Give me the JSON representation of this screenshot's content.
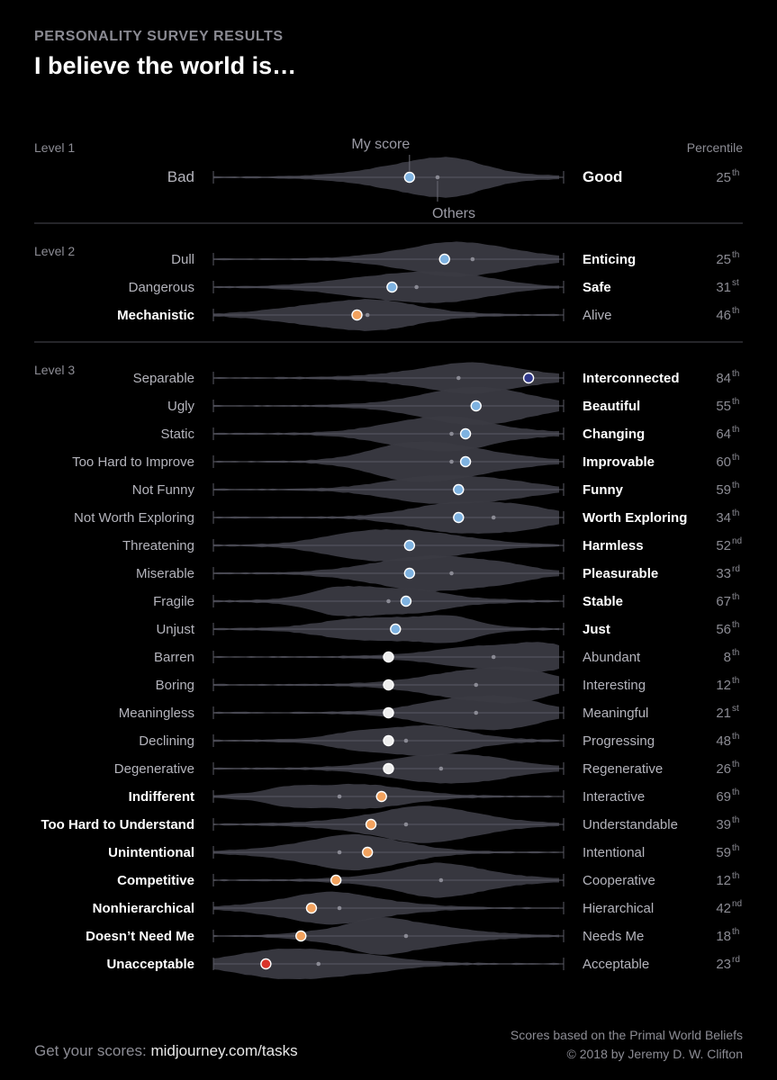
{
  "header": {
    "eyebrow": "PERSONALITY SURVEY RESULTS",
    "title": "I believe the world is…"
  },
  "chart_data": {
    "type": "violin",
    "scale": [
      0,
      100
    ],
    "column_header": "Percentile",
    "annotations": {
      "my_score": "My score",
      "others": "Others"
    },
    "levels": [
      {
        "label": "Level 1",
        "rows": [
          {
            "left": "Bad",
            "right": "Good",
            "bold": "right",
            "my_score": 56,
            "others_median": 64,
            "percentile": "25",
            "suffix": "th",
            "color": "#7eb2e0"
          }
        ]
      },
      {
        "label": "Level 2",
        "rows": [
          {
            "left": "Dull",
            "right": "Enticing",
            "bold": "right",
            "my_score": 66,
            "others_median": 74,
            "percentile": "25",
            "suffix": "th",
            "color": "#7eb2e0"
          },
          {
            "left": "Dangerous",
            "right": "Safe",
            "bold": "right",
            "my_score": 51,
            "others_median": 58,
            "percentile": "31",
            "suffix": "st",
            "color": "#7eb2e0"
          },
          {
            "left": "Mechanistic",
            "right": "Alive",
            "bold": "left",
            "my_score": 41,
            "others_median": 44,
            "percentile": "46",
            "suffix": "th",
            "color": "#f2a25e"
          }
        ]
      },
      {
        "label": "Level 3",
        "rows": [
          {
            "left": "Separable",
            "right": "Interconnected",
            "bold": "right",
            "my_score": 90,
            "others_median": 70,
            "percentile": "84",
            "suffix": "th",
            "color": "#323a8c"
          },
          {
            "left": "Ugly",
            "right": "Beautiful",
            "bold": "right",
            "my_score": 75,
            "others_median": 75,
            "percentile": "55",
            "suffix": "th",
            "color": "#7eb2e0"
          },
          {
            "left": "Static",
            "right": "Changing",
            "bold": "right",
            "my_score": 72,
            "others_median": 68,
            "percentile": "64",
            "suffix": "th",
            "color": "#7eb2e0"
          },
          {
            "left": "Too Hard to Improve",
            "right": "Improvable",
            "bold": "right",
            "my_score": 72,
            "others_median": 68,
            "percentile": "60",
            "suffix": "th",
            "color": "#7eb2e0"
          },
          {
            "left": "Not Funny",
            "right": "Funny",
            "bold": "right",
            "my_score": 70,
            "others_median": 70,
            "percentile": "59",
            "suffix": "th",
            "color": "#7eb2e0"
          },
          {
            "left": "Not Worth Exploring",
            "right": "Worth Exploring",
            "bold": "right",
            "my_score": 70,
            "others_median": 80,
            "percentile": "34",
            "suffix": "th",
            "color": "#7eb2e0"
          },
          {
            "left": "Threatening",
            "right": "Harmless",
            "bold": "right",
            "my_score": 56,
            "others_median": 56,
            "percentile": "52",
            "suffix": "nd",
            "color": "#7eb2e0"
          },
          {
            "left": "Miserable",
            "right": "Pleasurable",
            "bold": "right",
            "my_score": 56,
            "others_median": 68,
            "percentile": "33",
            "suffix": "rd",
            "color": "#7eb2e0"
          },
          {
            "left": "Fragile",
            "right": "Stable",
            "bold": "right",
            "my_score": 55,
            "others_median": 50,
            "percentile": "67",
            "suffix": "th",
            "color": "#7eb2e0"
          },
          {
            "left": "Unjust",
            "right": "Just",
            "bold": "right",
            "my_score": 52,
            "others_median": 52,
            "percentile": "56",
            "suffix": "th",
            "color": "#7eb2e0"
          },
          {
            "left": "Barren",
            "right": "Abundant",
            "bold": "none",
            "my_score": 50,
            "others_median": 80,
            "percentile": "8",
            "suffix": "th",
            "color": "#eeeeee"
          },
          {
            "left": "Boring",
            "right": "Interesting",
            "bold": "none",
            "my_score": 50,
            "others_median": 75,
            "percentile": "12",
            "suffix": "th",
            "color": "#eeeeee"
          },
          {
            "left": "Meaningless",
            "right": "Meaningful",
            "bold": "none",
            "my_score": 50,
            "others_median": 75,
            "percentile": "21",
            "suffix": "st",
            "color": "#eeeeee"
          },
          {
            "left": "Declining",
            "right": "Progressing",
            "bold": "none",
            "my_score": 50,
            "others_median": 55,
            "percentile": "48",
            "suffix": "th",
            "color": "#eeeeee"
          },
          {
            "left": "Degenerative",
            "right": "Regenerative",
            "bold": "none",
            "my_score": 50,
            "others_median": 65,
            "percentile": "26",
            "suffix": "th",
            "color": "#eeeeee"
          },
          {
            "left": "Indifferent",
            "right": "Interactive",
            "bold": "left",
            "my_score": 48,
            "others_median": 36,
            "percentile": "69",
            "suffix": "th",
            "color": "#f2a25e"
          },
          {
            "left": "Too Hard to Understand",
            "right": "Understandable",
            "bold": "left",
            "my_score": 45,
            "others_median": 55,
            "percentile": "39",
            "suffix": "th",
            "color": "#f2a25e"
          },
          {
            "left": "Unintentional",
            "right": "Intentional",
            "bold": "left",
            "my_score": 44,
            "others_median": 36,
            "percentile": "59",
            "suffix": "th",
            "color": "#f2a25e"
          },
          {
            "left": "Competitive",
            "right": "Cooperative",
            "bold": "left",
            "my_score": 35,
            "others_median": 65,
            "percentile": "12",
            "suffix": "th",
            "color": "#f2a25e"
          },
          {
            "left": "Nonhierarchical",
            "right": "Hierarchical",
            "bold": "left",
            "my_score": 28,
            "others_median": 36,
            "percentile": "42",
            "suffix": "nd",
            "color": "#f2a25e"
          },
          {
            "left": "Doesn’t Need Me",
            "right": "Needs Me",
            "bold": "left",
            "my_score": 25,
            "others_median": 55,
            "percentile": "18",
            "suffix": "th",
            "color": "#f2a25e"
          },
          {
            "left": "Unacceptable",
            "right": "Acceptable",
            "bold": "left",
            "my_score": 15,
            "others_median": 30,
            "percentile": "23",
            "suffix": "rd",
            "color": "#d9342b"
          }
        ]
      }
    ]
  },
  "footer": {
    "cta_prefix": "Get your scores: ",
    "cta_link": "midjourney.com/tasks",
    "credit_line1": "Scores based on the Primal World Beliefs",
    "credit_line2": "© 2018 by Jeremy D. W. Clifton"
  }
}
